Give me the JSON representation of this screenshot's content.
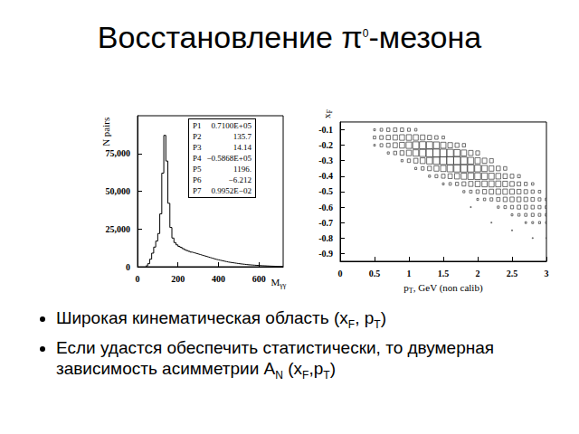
{
  "title": [
    {
      "text": "Восстановление π"
    },
    {
      "sup": "0"
    },
    {
      "text": "-мезона"
    }
  ],
  "bullets": [
    [
      {
        "text": "Широкая кинематическая область (x"
      },
      {
        "sub": "F"
      },
      {
        "text": ", p"
      },
      {
        "sub": "T"
      },
      {
        "text": ")"
      }
    ],
    [
      {
        "text": "Если удастся обеспечить статистически, то двумерная зависимость асимметрии A"
      },
      {
        "sub": "N"
      },
      {
        "text": " (x"
      },
      {
        "sub": "F"
      },
      {
        "text": ",p"
      },
      {
        "sub": "T"
      },
      {
        "text": ")"
      }
    ]
  ],
  "chart_data": [
    {
      "type": "histogram",
      "x_label": [
        {
          "text": "M"
        },
        {
          "sub": "γγ"
        }
      ],
      "y_label": [
        {
          "text": "N pairs"
        }
      ],
      "bins": [
        40,
        50,
        60,
        70,
        80,
        90,
        100,
        110,
        120,
        130,
        140,
        150,
        160,
        170,
        180,
        190,
        200,
        210,
        220,
        230,
        240,
        250,
        260,
        270,
        280,
        290,
        300,
        310,
        320,
        330,
        340,
        350,
        360,
        370,
        380,
        390,
        400,
        410,
        420,
        430,
        440,
        450,
        460,
        470,
        480,
        490,
        500,
        510,
        520,
        530,
        540,
        550,
        560,
        570,
        580,
        590,
        600,
        610,
        620,
        630,
        640,
        650,
        660,
        670,
        680,
        690,
        700,
        710,
        720
      ],
      "counts": [
        500,
        2000,
        5000,
        9000,
        13000,
        17000,
        22000,
        35000,
        62000,
        87000,
        70000,
        42000,
        26000,
        19000,
        16000,
        14500,
        13500,
        12800,
        12000,
        11300,
        10700,
        10200,
        9700,
        9300,
        8900,
        8500,
        8100,
        7700,
        7300,
        6900,
        6500,
        6100,
        5700,
        5300,
        4900,
        4600,
        4300,
        4000,
        3700,
        3400,
        3100,
        2900,
        2700,
        2500,
        2300,
        2100,
        1900,
        1750,
        1600,
        1450,
        1300,
        1200,
        1100,
        1000,
        900,
        820,
        740,
        660,
        590,
        520,
        460,
        400,
        350,
        300,
        260,
        220,
        180,
        150
      ],
      "xlim": [
        0,
        720
      ],
      "ylim": [
        0,
        100000
      ],
      "xticks": [
        0,
        200,
        400,
        600
      ],
      "yticks": [
        0,
        25000,
        50000,
        75000
      ],
      "color": "#000000",
      "grid": false,
      "annotations": {
        "fit_parameters": [
          [
            "P1",
            "0.7100E+05"
          ],
          [
            "P2",
            "135.7"
          ],
          [
            "P3",
            "14.14"
          ],
          [
            "P4",
            "−0.5868E+05"
          ],
          [
            "P5",
            "1196."
          ],
          [
            "P6",
            "−6.212"
          ],
          [
            "P7",
            "0.9952E−02"
          ]
        ]
      }
    },
    {
      "type": "heatmap",
      "marker": "square",
      "x_label": [
        {
          "text": "p"
        },
        {
          "sub": "T"
        },
        {
          "text": ", GeV (non calib)"
        }
      ],
      "y_label": [
        {
          "text": "x"
        },
        {
          "sub": "F"
        }
      ],
      "xlim": [
        0,
        3
      ],
      "ylim": [
        -0.95,
        -0.05
      ],
      "xticks": [
        0,
        0.5,
        1,
        1.5,
        2,
        2.5,
        3
      ],
      "yticks": [
        -0.1,
        -0.2,
        -0.3,
        -0.4,
        -0.5,
        -0.6,
        -0.7,
        -0.8,
        -0.9
      ],
      "color": "#333333",
      "grid": false,
      "cell_width": 0.1,
      "cell_height": 0.05,
      "cells": [
        [
          0.5,
          -0.1,
          5
        ],
        [
          0.5,
          -0.15,
          10
        ],
        [
          0.5,
          -0.2,
          4
        ],
        [
          0.6,
          -0.1,
          10
        ],
        [
          0.6,
          -0.15,
          18
        ],
        [
          0.6,
          -0.2,
          12
        ],
        [
          0.7,
          -0.1,
          15
        ],
        [
          0.7,
          -0.15,
          25
        ],
        [
          0.7,
          -0.2,
          20
        ],
        [
          0.7,
          -0.25,
          6
        ],
        [
          0.8,
          -0.1,
          18
        ],
        [
          0.8,
          -0.15,
          32
        ],
        [
          0.8,
          -0.2,
          30
        ],
        [
          0.8,
          -0.25,
          15
        ],
        [
          0.9,
          -0.1,
          16
        ],
        [
          0.9,
          -0.15,
          38
        ],
        [
          0.9,
          -0.2,
          40
        ],
        [
          0.9,
          -0.25,
          25
        ],
        [
          0.9,
          -0.3,
          6
        ],
        [
          1.0,
          -0.1,
          12
        ],
        [
          1.0,
          -0.15,
          40
        ],
        [
          1.0,
          -0.2,
          50
        ],
        [
          1.0,
          -0.25,
          38
        ],
        [
          1.0,
          -0.3,
          15
        ],
        [
          1.1,
          -0.1,
          8
        ],
        [
          1.1,
          -0.15,
          38
        ],
        [
          1.1,
          -0.2,
          58
        ],
        [
          1.1,
          -0.25,
          50
        ],
        [
          1.1,
          -0.3,
          28
        ],
        [
          1.1,
          -0.35,
          6
        ],
        [
          1.2,
          -0.15,
          32
        ],
        [
          1.2,
          -0.2,
          62
        ],
        [
          1.2,
          -0.25,
          62
        ],
        [
          1.2,
          -0.3,
          40
        ],
        [
          1.2,
          -0.35,
          14
        ],
        [
          1.3,
          -0.15,
          24
        ],
        [
          1.3,
          -0.2,
          60
        ],
        [
          1.3,
          -0.25,
          70
        ],
        [
          1.3,
          -0.3,
          52
        ],
        [
          1.3,
          -0.35,
          24
        ],
        [
          1.3,
          -0.4,
          6
        ],
        [
          1.4,
          -0.15,
          16
        ],
        [
          1.4,
          -0.2,
          54
        ],
        [
          1.4,
          -0.25,
          74
        ],
        [
          1.4,
          -0.3,
          62
        ],
        [
          1.4,
          -0.35,
          36
        ],
        [
          1.4,
          -0.4,
          12
        ],
        [
          1.5,
          -0.15,
          10
        ],
        [
          1.5,
          -0.2,
          44
        ],
        [
          1.5,
          -0.25,
          72
        ],
        [
          1.5,
          -0.3,
          70
        ],
        [
          1.5,
          -0.35,
          46
        ],
        [
          1.5,
          -0.4,
          20
        ],
        [
          1.5,
          -0.45,
          5
        ],
        [
          1.6,
          -0.2,
          34
        ],
        [
          1.6,
          -0.25,
          66
        ],
        [
          1.6,
          -0.3,
          72
        ],
        [
          1.6,
          -0.35,
          56
        ],
        [
          1.6,
          -0.4,
          28
        ],
        [
          1.6,
          -0.45,
          9
        ],
        [
          1.7,
          -0.2,
          24
        ],
        [
          1.7,
          -0.25,
          56
        ],
        [
          1.7,
          -0.3,
          70
        ],
        [
          1.7,
          -0.35,
          62
        ],
        [
          1.7,
          -0.4,
          38
        ],
        [
          1.7,
          -0.45,
          14
        ],
        [
          1.8,
          -0.2,
          15
        ],
        [
          1.8,
          -0.25,
          44
        ],
        [
          1.8,
          -0.3,
          64
        ],
        [
          1.8,
          -0.35,
          64
        ],
        [
          1.8,
          -0.4,
          46
        ],
        [
          1.8,
          -0.45,
          22
        ],
        [
          1.8,
          -0.5,
          6
        ],
        [
          1.9,
          -0.25,
          32
        ],
        [
          1.9,
          -0.3,
          54
        ],
        [
          1.9,
          -0.35,
          62
        ],
        [
          1.9,
          -0.4,
          52
        ],
        [
          1.9,
          -0.45,
          30
        ],
        [
          1.9,
          -0.5,
          10
        ],
        [
          1.9,
          -0.6,
          1
        ],
        [
          2.0,
          -0.25,
          22
        ],
        [
          2.0,
          -0.3,
          44
        ],
        [
          2.0,
          -0.35,
          56
        ],
        [
          2.0,
          -0.4,
          54
        ],
        [
          2.0,
          -0.45,
          38
        ],
        [
          2.0,
          -0.5,
          16
        ],
        [
          2.0,
          -0.55,
          5
        ],
        [
          2.1,
          -0.3,
          32
        ],
        [
          2.1,
          -0.35,
          46
        ],
        [
          2.1,
          -0.4,
          52
        ],
        [
          2.1,
          -0.45,
          42
        ],
        [
          2.1,
          -0.5,
          24
        ],
        [
          2.1,
          -0.55,
          8
        ],
        [
          2.2,
          -0.3,
          22
        ],
        [
          2.2,
          -0.35,
          36
        ],
        [
          2.2,
          -0.4,
          46
        ],
        [
          2.2,
          -0.45,
          44
        ],
        [
          2.2,
          -0.5,
          30
        ],
        [
          2.2,
          -0.55,
          12
        ],
        [
          2.2,
          -0.7,
          1
        ],
        [
          2.3,
          -0.35,
          26
        ],
        [
          2.3,
          -0.4,
          38
        ],
        [
          2.3,
          -0.45,
          42
        ],
        [
          2.3,
          -0.5,
          34
        ],
        [
          2.3,
          -0.55,
          18
        ],
        [
          2.3,
          -0.6,
          6
        ],
        [
          2.4,
          -0.35,
          16
        ],
        [
          2.4,
          -0.4,
          28
        ],
        [
          2.4,
          -0.45,
          36
        ],
        [
          2.4,
          -0.5,
          34
        ],
        [
          2.4,
          -0.55,
          24
        ],
        [
          2.4,
          -0.6,
          10
        ],
        [
          2.5,
          -0.4,
          20
        ],
        [
          2.5,
          -0.45,
          28
        ],
        [
          2.5,
          -0.5,
          32
        ],
        [
          2.5,
          -0.55,
          26
        ],
        [
          2.5,
          -0.6,
          14
        ],
        [
          2.5,
          -0.65,
          5
        ],
        [
          2.5,
          -0.75,
          1
        ],
        [
          2.6,
          -0.4,
          12
        ],
        [
          2.6,
          -0.45,
          20
        ],
        [
          2.6,
          -0.5,
          26
        ],
        [
          2.6,
          -0.55,
          26
        ],
        [
          2.6,
          -0.6,
          18
        ],
        [
          2.6,
          -0.65,
          8
        ],
        [
          2.7,
          -0.45,
          14
        ],
        [
          2.7,
          -0.5,
          20
        ],
        [
          2.7,
          -0.55,
          22
        ],
        [
          2.7,
          -0.6,
          18
        ],
        [
          2.7,
          -0.65,
          10
        ],
        [
          2.7,
          -0.7,
          4
        ],
        [
          2.8,
          -0.45,
          8
        ],
        [
          2.8,
          -0.5,
          14
        ],
        [
          2.8,
          -0.55,
          18
        ],
        [
          2.8,
          -0.6,
          16
        ],
        [
          2.8,
          -0.65,
          12
        ],
        [
          2.8,
          -0.7,
          5
        ],
        [
          2.8,
          -0.8,
          1
        ],
        [
          2.9,
          -0.5,
          9
        ],
        [
          2.9,
          -0.55,
          12
        ],
        [
          2.9,
          -0.6,
          13
        ],
        [
          2.9,
          -0.65,
          10
        ],
        [
          2.9,
          -0.7,
          6
        ],
        [
          3.0,
          -0.55,
          8
        ],
        [
          3.0,
          -0.6,
          9
        ],
        [
          3.0,
          -0.65,
          8
        ],
        [
          3.0,
          -0.7,
          5
        ],
        [
          3.0,
          -0.8,
          1
        ]
      ]
    }
  ]
}
